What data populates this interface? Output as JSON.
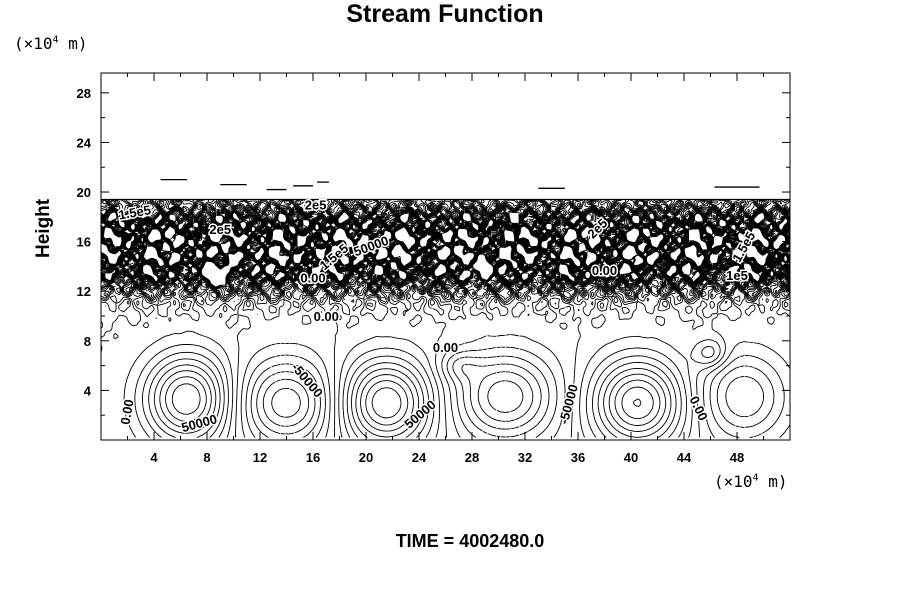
{
  "chart_data": {
    "type": "contour",
    "title": "Stream Function",
    "ylabel": "Height",
    "y_unit": {
      "prefix": "(×10",
      "exp": "4",
      "suffix": " m)"
    },
    "x_unit": {
      "prefix": "(×10",
      "exp": "4",
      "suffix": " m)"
    },
    "xlim": [
      0,
      52
    ],
    "ylim": [
      0,
      29.6
    ],
    "x_ticks": [
      4,
      8,
      12,
      16,
      20,
      24,
      28,
      32,
      36,
      40,
      44,
      48
    ],
    "y_ticks": [
      4,
      8,
      12,
      16,
      20,
      24,
      28
    ],
    "contour_labels": [
      {
        "text": "1.5e5",
        "x": 2.6,
        "y": 18.0,
        "rot": -10
      },
      {
        "text": "2e5",
        "x": 9.0,
        "y": 16.6,
        "rot": 0
      },
      {
        "text": "2e5",
        "x": 16.2,
        "y": 18.6,
        "rot": 0
      },
      {
        "text": "1.5e5",
        "x": 17.8,
        "y": 14.5,
        "rot": -40
      },
      {
        "text": "50000",
        "x": 20.5,
        "y": 15.3,
        "rot": -20
      },
      {
        "text": "0.00",
        "x": 16.0,
        "y": 12.7,
        "rot": 0
      },
      {
        "text": "0.00",
        "x": 17.0,
        "y": 9.6,
        "rot": 0
      },
      {
        "text": "0.00",
        "x": 26.0,
        "y": 7.1,
        "rot": 0
      },
      {
        "text": "2e5",
        "x": 37.7,
        "y": 16.8,
        "rot": -45
      },
      {
        "text": "0.00",
        "x": 38.0,
        "y": 13.3,
        "rot": 0
      },
      {
        "text": "1e5",
        "x": 48.0,
        "y": 12.9,
        "rot": 0
      },
      {
        "text": "1.5e5",
        "x": 48.8,
        "y": 15.4,
        "rot": -60
      },
      {
        "text": "0.00",
        "x": 2.3,
        "y": 2.2,
        "rot": -80
      },
      {
        "text": "50000",
        "x": 7.5,
        "y": 1.0,
        "rot": -15
      },
      {
        "text": "-50000",
        "x": 15.3,
        "y": 4.6,
        "rot": 50
      },
      {
        "text": "50000",
        "x": 24.3,
        "y": 1.8,
        "rot": -40
      },
      {
        "text": "-50000",
        "x": 35.6,
        "y": 2.8,
        "rot": -75
      },
      {
        "text": "0.00",
        "x": 44.8,
        "y": 2.4,
        "rot": 65
      }
    ]
  },
  "footer": "TIME = 4002480.0"
}
